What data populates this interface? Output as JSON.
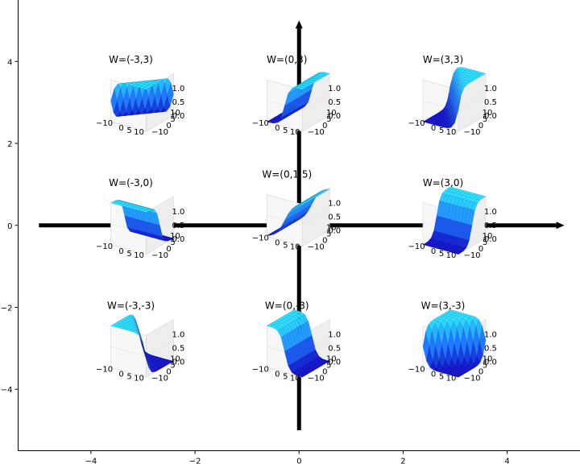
{
  "chart_data": {
    "type": "scatter",
    "title": "",
    "xlabel": "",
    "ylabel": "",
    "xlim": [
      -5.4,
      5.4
    ],
    "ylim": [
      -5.5,
      5.5
    ],
    "xticks": [
      -4,
      -2,
      0,
      2,
      4
    ],
    "yticks": [
      -4,
      -2,
      0,
      2,
      4
    ],
    "x_tick_labels": [
      "−4",
      "−2",
      "0",
      "2",
      "4"
    ],
    "y_tick_labels": [
      "−4",
      "−2",
      "0",
      "2",
      "4"
    ],
    "grid": false,
    "arrows": [
      {
        "from": [
          -5,
          0
        ],
        "to": [
          5.1,
          0
        ]
      },
      {
        "from": [
          0,
          -5
        ],
        "to": [
          0,
          5
        ]
      }
    ],
    "inset_axis_labels": {
      "x_ticks": [
        "−10",
        "0",
        "5",
        "10"
      ],
      "y_ticks": [
        "−10",
        "0",
        "5",
        "10"
      ],
      "z_ticks": [
        "1.0",
        "0.5",
        "0.0"
      ]
    },
    "colors": {
      "surface_light": "#29e6ff",
      "surface_mid": "#1e7bff",
      "surface_dark": "#1010c8",
      "axis": "#000000"
    },
    "points": [
      {
        "label": "W=(-3,3)",
        "x": -3,
        "y": 3,
        "w": [
          -3,
          3
        ]
      },
      {
        "label": "W=(0,3)",
        "x": 0,
        "y": 3,
        "w": [
          0,
          3
        ]
      },
      {
        "label": "W=(3,3)",
        "x": 3,
        "y": 3,
        "w": [
          3,
          3
        ]
      },
      {
        "label": "W=(0,1.5)",
        "x": 0,
        "y": 0.2,
        "w": [
          0,
          1.5
        ]
      },
      {
        "label": "W=(-3,0)",
        "x": -3,
        "y": 0,
        "w": [
          -3,
          0
        ]
      },
      {
        "label": "W=(3,0)",
        "x": 3,
        "y": 0,
        "w": [
          3,
          0
        ]
      },
      {
        "label": "W=(-3,-3)",
        "x": -3,
        "y": -3,
        "w": [
          -3,
          -3
        ]
      },
      {
        "label": "W=(0,-3)",
        "x": 0,
        "y": -3,
        "w": [
          0,
          -3
        ]
      },
      {
        "label": "W=(3,-3)",
        "x": 3,
        "y": -3,
        "w": [
          3,
          -3
        ]
      }
    ]
  }
}
